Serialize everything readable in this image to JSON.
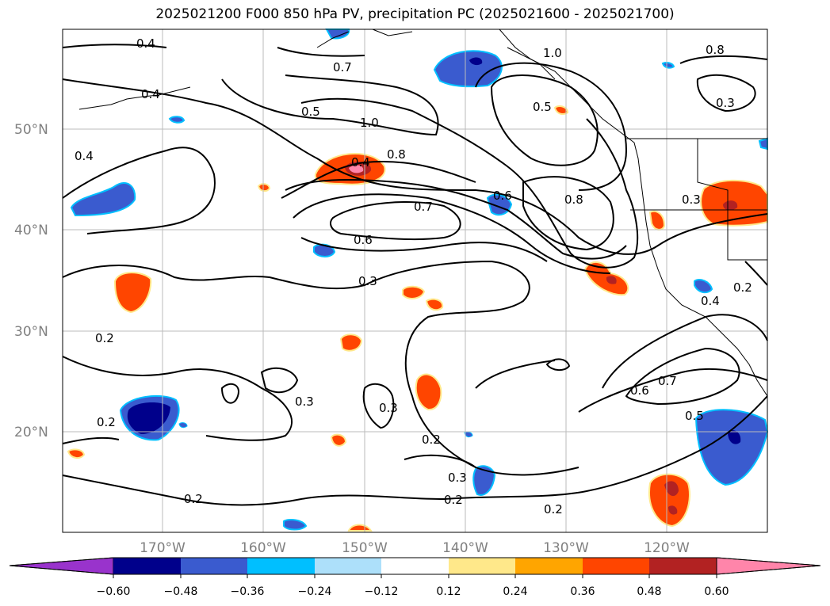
{
  "title": "2025021200 F000 850 hPa PV, precipitation PC (2025021600 - 2025021700)",
  "lat_labels": [
    "50°N",
    "40°N",
    "30°N",
    "20°N"
  ],
  "lon_labels": [
    "170°W",
    "160°W",
    "150°W",
    "140°W",
    "130°W",
    "120°W"
  ],
  "contour_labels": [
    "0.4",
    "0.4",
    "0.4",
    "0.5",
    "1.0",
    "0.8",
    "0.4",
    "0.7",
    "0.6",
    "0.3",
    "1.0",
    "0.8",
    "0.5",
    "0.7",
    "0.6",
    "0.8",
    "0.3",
    "0.3",
    "0.2",
    "0.2",
    "0.3",
    "0.3",
    "0.2",
    "0.3",
    "0.2",
    "0.2",
    "0.2",
    "0.6",
    "0.7",
    "0.5",
    "0.2",
    "0.4"
  ],
  "colorbar": {
    "ticks": [
      "−0.60",
      "−0.48",
      "−0.36",
      "−0.24",
      "−0.12",
      "0.12",
      "0.24",
      "0.36",
      "0.48",
      "0.60"
    ],
    "colors": [
      "#9933cc",
      "#00008b",
      "#3a5bcf",
      "#00bfff",
      "#ade0fa",
      "#ffffff",
      "#ffe88a",
      "#ffa500",
      "#ff4500",
      "#b22222",
      "#ff85aa"
    ]
  }
}
